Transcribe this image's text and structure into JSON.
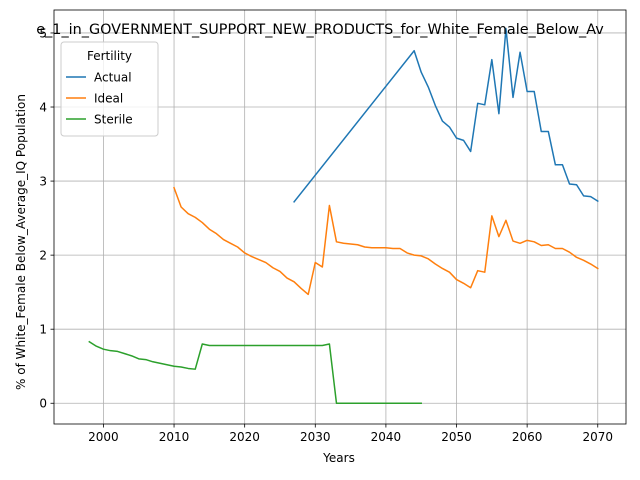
{
  "chart_data": {
    "type": "line",
    "title": "e_1_in_GOVERNMENT_SUPPORT_NEW_PRODUCTS_for_White_Female_Below_Av",
    "xlabel": "Years",
    "ylabel": "% of White_Female Below_Average_IQ Population",
    "xlim": [
      1993,
      2074
    ],
    "ylim": [
      -0.28,
      5.31
    ],
    "xticks": [
      2000,
      2010,
      2020,
      2030,
      2040,
      2050,
      2060,
      2070
    ],
    "yticks": [
      0,
      1,
      2,
      3,
      4,
      5
    ],
    "grid": true,
    "legend": {
      "title": "Fertility",
      "position": "top-left"
    },
    "series": [
      {
        "name": "Actual",
        "color": "#1f77b4",
        "points": [
          [
            2027,
            2.72
          ],
          [
            2044,
            4.76
          ],
          [
            2045,
            4.47
          ],
          [
            2046,
            4.27
          ],
          [
            2047,
            4.02
          ],
          [
            2048,
            3.81
          ],
          [
            2049,
            3.73
          ],
          [
            2050,
            3.58
          ],
          [
            2051,
            3.55
          ],
          [
            2052,
            3.4
          ],
          [
            2053,
            4.05
          ],
          [
            2054,
            4.03
          ],
          [
            2055,
            4.64
          ],
          [
            2056,
            3.91
          ],
          [
            2057,
            5.06
          ],
          [
            2058,
            4.13
          ],
          [
            2059,
            4.74
          ],
          [
            2060,
            4.21
          ],
          [
            2061,
            4.21
          ],
          [
            2062,
            3.67
          ],
          [
            2063,
            3.67
          ],
          [
            2064,
            3.22
          ],
          [
            2065,
            3.22
          ],
          [
            2066,
            2.96
          ],
          [
            2067,
            2.95
          ],
          [
            2068,
            2.8
          ],
          [
            2069,
            2.79
          ],
          [
            2070,
            2.73
          ]
        ]
      },
      {
        "name": "Ideal",
        "color": "#ff7f0e",
        "points": [
          [
            2010,
            2.91
          ],
          [
            2011,
            2.65
          ],
          [
            2012,
            2.56
          ],
          [
            2013,
            2.51
          ],
          [
            2014,
            2.44
          ],
          [
            2015,
            2.35
          ],
          [
            2016,
            2.29
          ],
          [
            2017,
            2.21
          ],
          [
            2018,
            2.16
          ],
          [
            2019,
            2.11
          ],
          [
            2020,
            2.03
          ],
          [
            2021,
            1.98
          ],
          [
            2022,
            1.94
          ],
          [
            2023,
            1.9
          ],
          [
            2024,
            1.83
          ],
          [
            2025,
            1.78
          ],
          [
            2026,
            1.69
          ],
          [
            2027,
            1.64
          ],
          [
            2028,
            1.55
          ],
          [
            2029,
            1.47
          ],
          [
            2030,
            1.9
          ],
          [
            2031,
            1.84
          ],
          [
            2032,
            2.67
          ],
          [
            2033,
            2.18
          ],
          [
            2034,
            2.16
          ],
          [
            2035,
            2.15
          ],
          [
            2036,
            2.14
          ],
          [
            2037,
            2.11
          ],
          [
            2038,
            2.1
          ],
          [
            2039,
            2.1
          ],
          [
            2040,
            2.1
          ],
          [
            2041,
            2.09
          ],
          [
            2042,
            2.09
          ],
          [
            2043,
            2.03
          ],
          [
            2044,
            2.0
          ],
          [
            2045,
            1.99
          ],
          [
            2046,
            1.95
          ],
          [
            2047,
            1.88
          ],
          [
            2048,
            1.82
          ],
          [
            2049,
            1.77
          ],
          [
            2050,
            1.67
          ],
          [
            2051,
            1.62
          ],
          [
            2052,
            1.56
          ],
          [
            2053,
            1.79
          ],
          [
            2054,
            1.77
          ],
          [
            2055,
            2.53
          ],
          [
            2056,
            2.25
          ],
          [
            2057,
            2.47
          ],
          [
            2058,
            2.19
          ],
          [
            2059,
            2.16
          ],
          [
            2060,
            2.2
          ],
          [
            2061,
            2.18
          ],
          [
            2062,
            2.13
          ],
          [
            2063,
            2.14
          ],
          [
            2064,
            2.09
          ],
          [
            2065,
            2.09
          ],
          [
            2066,
            2.04
          ],
          [
            2067,
            1.97
          ],
          [
            2068,
            1.93
          ],
          [
            2069,
            1.88
          ],
          [
            2070,
            1.82
          ]
        ]
      },
      {
        "name": "Sterile",
        "color": "#2ca02c",
        "points": [
          [
            1998,
            0.83
          ],
          [
            1999,
            0.77
          ],
          [
            2000,
            0.73
          ],
          [
            2001,
            0.71
          ],
          [
            2002,
            0.7
          ],
          [
            2003,
            0.67
          ],
          [
            2004,
            0.64
          ],
          [
            2005,
            0.6
          ],
          [
            2006,
            0.59
          ],
          [
            2007,
            0.56
          ],
          [
            2008,
            0.54
          ],
          [
            2009,
            0.52
          ],
          [
            2010,
            0.5
          ],
          [
            2011,
            0.49
          ],
          [
            2012,
            0.47
          ],
          [
            2013,
            0.46
          ],
          [
            2014,
            0.8
          ],
          [
            2015,
            0.78
          ],
          [
            2016,
            0.78
          ],
          [
            2020,
            0.78
          ],
          [
            2025,
            0.78
          ],
          [
            2030,
            0.78
          ],
          [
            2031,
            0.78
          ],
          [
            2032,
            0.8
          ],
          [
            2033,
            0.0
          ],
          [
            2035,
            0.0
          ],
          [
            2040,
            0.0
          ],
          [
            2045,
            0.0
          ]
        ]
      }
    ]
  }
}
